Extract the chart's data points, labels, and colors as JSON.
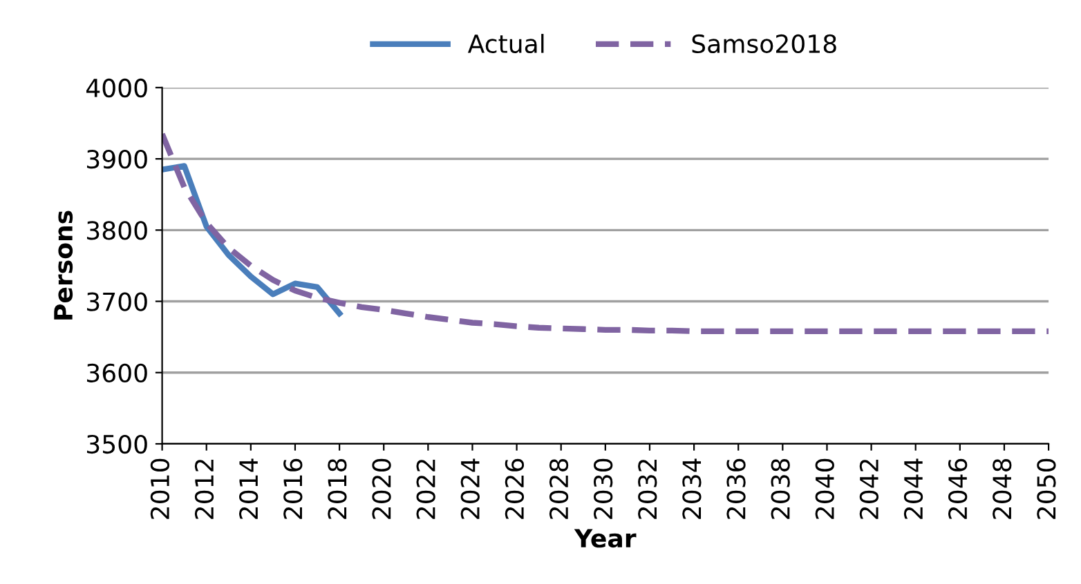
{
  "chart_data": {
    "type": "line",
    "xlabel": "Year",
    "ylabel": "Persons",
    "xlim": [
      2010,
      2050
    ],
    "ylim": [
      3500,
      4000
    ],
    "xticks": [
      2010,
      2012,
      2014,
      2016,
      2018,
      2020,
      2022,
      2024,
      2026,
      2028,
      2030,
      2032,
      2034,
      2036,
      2038,
      2040,
      2042,
      2044,
      2046,
      2048,
      2050
    ],
    "yticks": [
      3500,
      3600,
      3700,
      3800,
      3900,
      4000
    ],
    "grid": "y",
    "legend": "top",
    "marker": "none",
    "series": [
      {
        "name": "Actual",
        "color": "#4a7ebb",
        "line_style": "solid",
        "x": [
          2010,
          2011,
          2012,
          2013,
          2014,
          2015,
          2016,
          2017,
          2018
        ],
        "values": [
          3885,
          3890,
          3805,
          3765,
          3735,
          3710,
          3725,
          3720,
          3683
        ]
      },
      {
        "name": "Samso2018",
        "color": "#8064a2",
        "line_style": "dashed",
        "x": [
          2010,
          2011,
          2012,
          2013,
          2014,
          2015,
          2016,
          2017,
          2018,
          2019,
          2020,
          2021,
          2022,
          2023,
          2024,
          2025,
          2026,
          2027,
          2028,
          2029,
          2030,
          2031,
          2032,
          2033,
          2034,
          2035,
          2036,
          2037,
          2038,
          2039,
          2040,
          2041,
          2042,
          2043,
          2044,
          2045,
          2046,
          2047,
          2048,
          2049,
          2050
        ],
        "values": [
          3935,
          3860,
          3810,
          3775,
          3750,
          3730,
          3715,
          3705,
          3698,
          3692,
          3688,
          3683,
          3678,
          3674,
          3670,
          3668,
          3665,
          3663,
          3662,
          3661,
          3660,
          3660,
          3659,
          3659,
          3658,
          3658,
          3658,
          3658,
          3658,
          3658,
          3658,
          3658,
          3658,
          3658,
          3658,
          3658,
          3658,
          3658,
          3658,
          3658,
          3658
        ]
      }
    ]
  }
}
